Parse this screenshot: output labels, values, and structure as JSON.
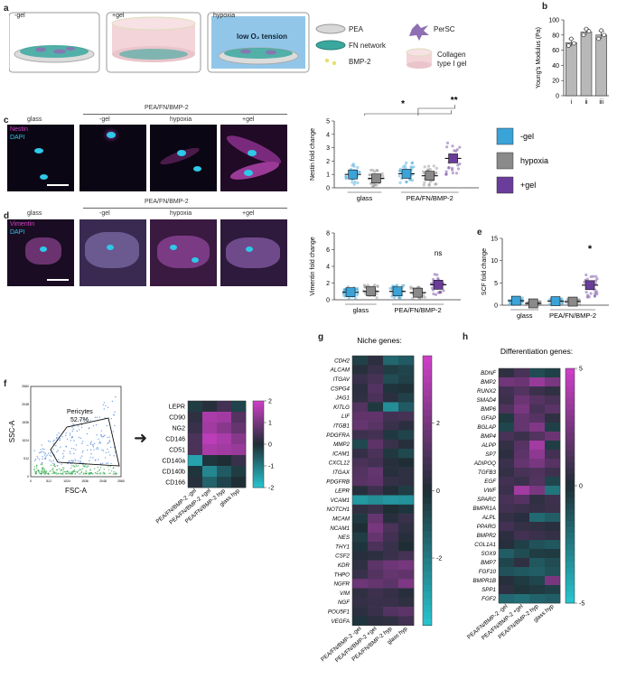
{
  "panel_letters": {
    "a": "a",
    "b": "b",
    "c": "c",
    "d": "d",
    "e": "e",
    "f": "f",
    "g": "g",
    "h": "h"
  },
  "panel_a": {
    "dishes": [
      "-gel",
      "+gel",
      "hypoxia"
    ],
    "hypoxia_note": "low O₂ tension",
    "legend": [
      {
        "label": "PEA",
        "icon": "pea-disc-icon"
      },
      {
        "label": "PerSC",
        "icon": "cell-icon"
      },
      {
        "label": "FN network",
        "icon": "fn-network-icon"
      },
      {
        "label": "Collagen type I gel",
        "icon": "gel-cylinder-icon"
      },
      {
        "label": "BMP-2",
        "icon": "bmp2-dots-icon"
      }
    ],
    "colors": {
      "gel": "#f2d4d9",
      "hypoxia": "#4aa0d8",
      "network": "#2f8f8b",
      "cell": "#8e6fb3"
    }
  },
  "colors": {
    "minus_gel": "#3aa3d8",
    "hypoxia": "#8a8a8a",
    "plus_gel": "#6a3d9a",
    "heat_low": "#27c2cc",
    "heat_mid": "#1f2e35",
    "heat_high": "#cc3fc5"
  },
  "micro_c": {
    "labels": [
      "glass",
      "-gel",
      "hypoxia",
      "+gel"
    ],
    "group": "PEA/FN/BMP-2",
    "stain1": "Nestin",
    "stain2": "DAPI"
  },
  "micro_d": {
    "labels": [
      "glass",
      "-gel",
      "hypoxia",
      "+gel"
    ],
    "group": "PEA/FN/BMP-2",
    "stain1": "Vimentin",
    "stain2": "DAPI"
  },
  "legend_c": [
    {
      "label": "-gel",
      "color": "#3aa3d8"
    },
    {
      "label": "hypoxia",
      "color": "#8a8a8a"
    },
    {
      "label": "+gel",
      "color": "#6a3d9a"
    }
  ],
  "flow": {
    "ylabel": "SSC-A",
    "xlabel": "FSC-A",
    "gate_label": "Pericytes",
    "gate_value": "52.7%",
    "xticks": [
      "0",
      "512",
      "1024",
      "1536",
      "2048",
      "2560"
    ],
    "yticks": [
      "0",
      "512",
      "1024",
      "1536",
      "2048",
      "2560"
    ]
  },
  "chart_data": [
    {
      "id": "b",
      "type": "bar",
      "title": "",
      "xlabel": "",
      "ylabel": "Young's Modulus (Pa)",
      "categories": [
        "i",
        "ii",
        "iii"
      ],
      "values": [
        70,
        84,
        80
      ],
      "errors": [
        5,
        4,
        5
      ],
      "points": [
        [
          66,
          75,
          69
        ],
        [
          80,
          88,
          85
        ],
        [
          75,
          86,
          80
        ]
      ],
      "ylim": [
        0,
        100
      ],
      "yticks": [
        0,
        20,
        40,
        60,
        80,
        100
      ]
    },
    {
      "id": "c",
      "type": "scatter",
      "ylabel": "Nestin fold change",
      "ylim": [
        0,
        5
      ],
      "yticks": [
        0,
        1,
        2,
        3,
        4,
        5
      ],
      "groups": [
        "glass",
        "PEA/FN/BMP-2"
      ],
      "series": [
        {
          "name": "-gel",
          "values": [
            1.0,
            1.05
          ]
        },
        {
          "name": "hypoxia",
          "values": [
            0.7,
            0.9
          ]
        },
        {
          "name": "+gel",
          "values": [
            null,
            2.2
          ]
        }
      ],
      "significance": [
        "*",
        "**"
      ]
    },
    {
      "id": "d",
      "type": "scatter",
      "ylabel": "Vimentin fold change",
      "ylim": [
        0,
        8
      ],
      "yticks": [
        0,
        2,
        4,
        6,
        8
      ],
      "groups": [
        "glass",
        "PEA/FN/BMP-2"
      ],
      "series": [
        {
          "name": "-gel",
          "values": [
            0.9,
            1.0
          ]
        },
        {
          "name": "hypoxia",
          "values": [
            1.0,
            0.85
          ]
        },
        {
          "name": "+gel",
          "values": [
            null,
            1.8
          ]
        }
      ],
      "significance": [
        "ns"
      ]
    },
    {
      "id": "e",
      "type": "scatter",
      "ylabel": "SCF fold change",
      "ylim": [
        0,
        15
      ],
      "yticks": [
        0,
        5,
        10,
        15
      ],
      "groups": [
        "glass",
        "PEA/FN/BMP-2"
      ],
      "series": [
        {
          "name": "-gel",
          "values": [
            1.0,
            0.9
          ]
        },
        {
          "name": "hypoxia",
          "values": [
            0.4,
            0.8
          ]
        },
        {
          "name": "+gel",
          "values": [
            null,
            4.5
          ]
        }
      ],
      "significance": [
        "*"
      ]
    },
    {
      "id": "f",
      "type": "heatmap",
      "rows": [
        "LEPR",
        "CD90",
        "NG2",
        "CD146",
        "CD51",
        "CD140a",
        "CD140b",
        "CD166"
      ],
      "columns": [
        "PEA/FN/BMP-2 -gel",
        "PEA/FN/BMP-2 +gel",
        "PEA/FN/BMP-2 hyp",
        "glass hyp"
      ],
      "values": [
        [
          -0.2,
          0.1,
          0.4,
          -0.3
        ],
        [
          0.2,
          1.6,
          1.5,
          0.6
        ],
        [
          0.3,
          1.5,
          1.2,
          0.8
        ],
        [
          0.5,
          1.8,
          1.6,
          1.2
        ],
        [
          0.5,
          1.6,
          1.5,
          1.4
        ],
        [
          -1.6,
          -0.1,
          0.0,
          0.3
        ],
        [
          -0.1,
          -1.2,
          -0.6,
          -0.2
        ],
        [
          0.1,
          -0.7,
          -0.3,
          0.0
        ]
      ],
      "colorbar": {
        "min": -2,
        "max": 2,
        "ticks": [
          2,
          1,
          0,
          -1,
          -2
        ]
      }
    },
    {
      "id": "g",
      "type": "heatmap",
      "title": "Niche genes:",
      "rows": [
        "CDH2",
        "ALCAM",
        "ITGAV",
        "CSPG4",
        "JAG1",
        "KITLG",
        "LIF",
        "ITGB1",
        "PDGFRA",
        "MMP2",
        "ICAM1",
        "CXCL12",
        "ITGAX",
        "PDGFRB",
        "LEPR",
        "VCAM1",
        "NOTCH1",
        "MCAM",
        "NCAM1",
        "NES",
        "THY1",
        "CSF2",
        "KDR",
        "THPO",
        "NGFR",
        "VIM",
        "NGF",
        "POU5F1",
        "VEGFA"
      ],
      "columns": [
        "PEA/FN/BMP-2 -gel",
        "PEA/FN/BMP-2 +gel",
        "PEA/FN/BMP-2 hyp",
        "glass hyp"
      ],
      "values": [
        [
          -0.5,
          0.3,
          -1.5,
          -1.2
        ],
        [
          0.2,
          0.6,
          -0.4,
          -0.6
        ],
        [
          0.6,
          0.9,
          -0.8,
          -0.5
        ],
        [
          0.3,
          1.2,
          -0.2,
          -0.1
        ],
        [
          0.4,
          1.0,
          0.3,
          -0.5
        ],
        [
          1.2,
          -0.3,
          -2.6,
          -1.2
        ],
        [
          1.5,
          1.5,
          0.8,
          0.9
        ],
        [
          1.6,
          1.3,
          0.6,
          0.3
        ],
        [
          0.7,
          0.8,
          -0.3,
          -0.6
        ],
        [
          -0.7,
          1.4,
          0.6,
          0.2
        ],
        [
          0.5,
          1.0,
          -0.3,
          -0.7
        ],
        [
          1.0,
          0.8,
          0.2,
          0.0
        ],
        [
          1.2,
          1.6,
          0.2,
          0.4
        ],
        [
          1.3,
          1.5,
          0.5,
          0.4
        ],
        [
          0.2,
          0.7,
          0.1,
          -0.4
        ],
        [
          -2.9,
          -2.6,
          -2.8,
          -2.7
        ],
        [
          0.4,
          0.6,
          0.0,
          -0.2
        ],
        [
          -0.3,
          1.6,
          0.2,
          0.6
        ],
        [
          0.0,
          2.0,
          1.0,
          0.4
        ],
        [
          -0.4,
          1.6,
          0.8,
          0.2
        ],
        [
          -0.2,
          1.0,
          0.6,
          0.0
        ],
        [
          0.2,
          0.3,
          0.6,
          0.9
        ],
        [
          0.4,
          1.4,
          1.8,
          2.0
        ],
        [
          0.6,
          1.2,
          1.6,
          1.5
        ],
        [
          1.8,
          1.6,
          1.4,
          2.2
        ],
        [
          0.4,
          0.7,
          0.5,
          0.2
        ],
        [
          0.5,
          0.6,
          0.6,
          0.4
        ],
        [
          0.3,
          0.6,
          1.2,
          1.4
        ],
        [
          -0.2,
          0.3,
          0.4,
          0.8
        ]
      ],
      "colorbar": {
        "min": -4,
        "max": 4,
        "ticks": [
          2,
          0,
          -2
        ]
      }
    },
    {
      "id": "h",
      "type": "heatmap",
      "title": "Differentiation genes:",
      "rows": [
        "BDNF",
        "BMP2",
        "RUNX2",
        "SMAD4",
        "BMP6",
        "GFAP",
        "BGLAP",
        "BMP4",
        "ALPP",
        "SP7",
        "ADIPOQ",
        "TGFB3",
        "EGF",
        "VWF",
        "SPARC",
        "BMPR1A",
        "ALPL",
        "PPARG",
        "BMPR2",
        "COL1A1",
        "SOX9",
        "BMP7",
        "FGF10",
        "BMPR1B",
        "SPP1",
        "FGF2"
      ],
      "columns": [
        "PEA/FN/BMP-2 -gel",
        "PEA/FN/BMP-2 +gel",
        "PEA/FN/BMP-2 hyp",
        "glass hyp"
      ],
      "values": [
        [
          0.5,
          1.2,
          -1.0,
          -0.6
        ],
        [
          2.4,
          2.2,
          3.5,
          2.6
        ],
        [
          1.0,
          1.5,
          0.8,
          0.5
        ],
        [
          0.8,
          2.2,
          1.6,
          1.2
        ],
        [
          1.4,
          2.6,
          1.2,
          1.7
        ],
        [
          -0.4,
          2.0,
          1.6,
          0.5
        ],
        [
          -0.8,
          2.0,
          2.8,
          -0.6
        ],
        [
          1.2,
          0.8,
          1.5,
          2.2
        ],
        [
          0.6,
          1.6,
          3.8,
          -0.5
        ],
        [
          0.4,
          1.8,
          3.2,
          1.0
        ],
        [
          0.8,
          2.0,
          2.6,
          1.6
        ],
        [
          0.6,
          1.2,
          1.4,
          0.9
        ],
        [
          1.0,
          0.8,
          1.5,
          -0.8
        ],
        [
          0.8,
          3.8,
          2.6,
          -2.4
        ],
        [
          1.2,
          1.6,
          0.5,
          0.9
        ],
        [
          1.0,
          0.8,
          0.6,
          0.8
        ],
        [
          0.6,
          0.3,
          -2.0,
          -1.6
        ],
        [
          1.0,
          0.6,
          0.5,
          0.3
        ],
        [
          0.4,
          1.0,
          0.8,
          0.6
        ],
        [
          0.2,
          -0.6,
          -1.2,
          -1.4
        ],
        [
          -1.6,
          -1.0,
          -0.5,
          -0.4
        ],
        [
          -0.8,
          0.5,
          -1.4,
          -1.0
        ],
        [
          -1.2,
          -1.4,
          -1.6,
          -1.2
        ],
        [
          0.2,
          -0.4,
          -0.8,
          2.6
        ],
        [
          0.5,
          -0.2,
          -0.4,
          -0.6
        ],
        [
          -2.0,
          -2.2,
          -1.8,
          -1.6
        ]
      ],
      "colorbar": {
        "min": -5,
        "max": 5,
        "ticks": [
          5,
          0,
          -5
        ]
      }
    }
  ]
}
